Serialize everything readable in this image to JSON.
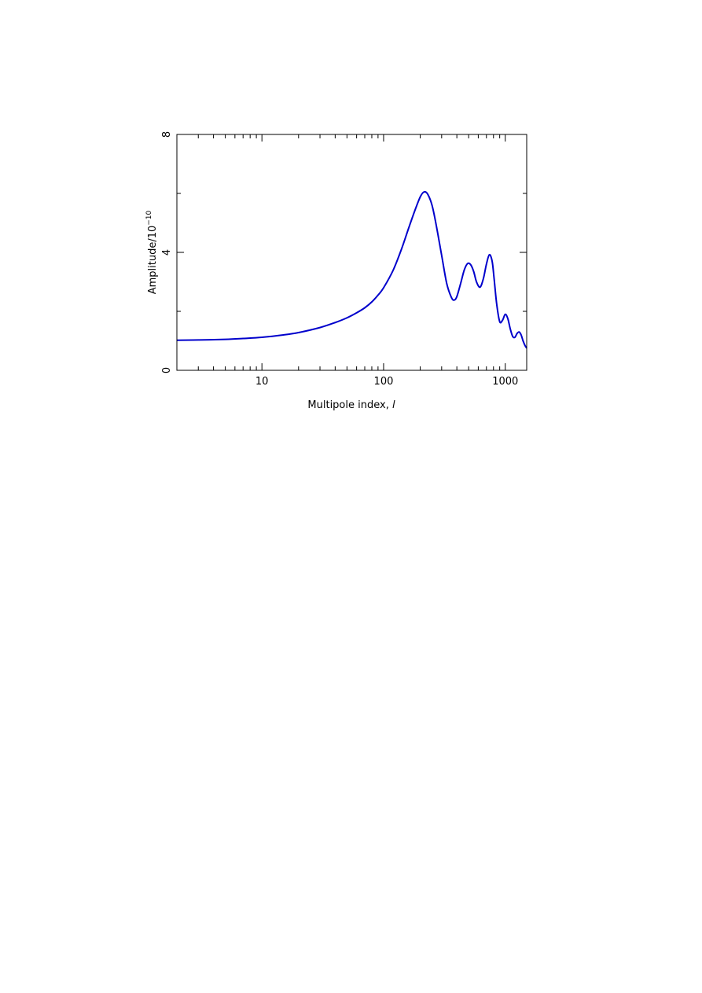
{
  "chart_data": {
    "type": "line",
    "title": "",
    "xlabel": "Multipole index, ",
    "xlabel_symbol": "l",
    "ylabel": "Amplitude/10",
    "ylabel_exponent": "−10",
    "x_scale": "log",
    "xlim": [
      2,
      1500
    ],
    "ylim": [
      0,
      8
    ],
    "x_tick_labels": [
      "10",
      "100",
      "1000"
    ],
    "y_tick_labels": [
      "0",
      "4",
      "8"
    ],
    "grid": false,
    "legend": "none",
    "line_color": "#0000cc",
    "series": [
      {
        "x": [
          2,
          3,
          5,
          7,
          10,
          15,
          20,
          30,
          40,
          50,
          60,
          70,
          80,
          90,
          100,
          120,
          140,
          160,
          180,
          200,
          215,
          230,
          250,
          270,
          300,
          330,
          360,
          380,
          400,
          430,
          460,
          490,
          520,
          550,
          580,
          620,
          660,
          700,
          740,
          780,
          810,
          850,
          900,
          950,
          1000,
          1050,
          1100,
          1150,
          1200,
          1250,
          1300,
          1350,
          1400,
          1450,
          1500
        ],
        "y": [
          1.02,
          1.03,
          1.05,
          1.08,
          1.12,
          1.2,
          1.28,
          1.45,
          1.62,
          1.78,
          1.95,
          2.12,
          2.32,
          2.55,
          2.8,
          3.4,
          4.1,
          4.8,
          5.4,
          5.88,
          6.05,
          5.98,
          5.6,
          4.95,
          3.9,
          2.95,
          2.48,
          2.38,
          2.5,
          2.95,
          3.4,
          3.62,
          3.58,
          3.35,
          3.0,
          2.82,
          3.1,
          3.6,
          3.92,
          3.7,
          3.1,
          2.25,
          1.65,
          1.7,
          1.9,
          1.75,
          1.4,
          1.15,
          1.12,
          1.25,
          1.3,
          1.2,
          1.0,
          0.85,
          0.75
        ]
      }
    ]
  }
}
